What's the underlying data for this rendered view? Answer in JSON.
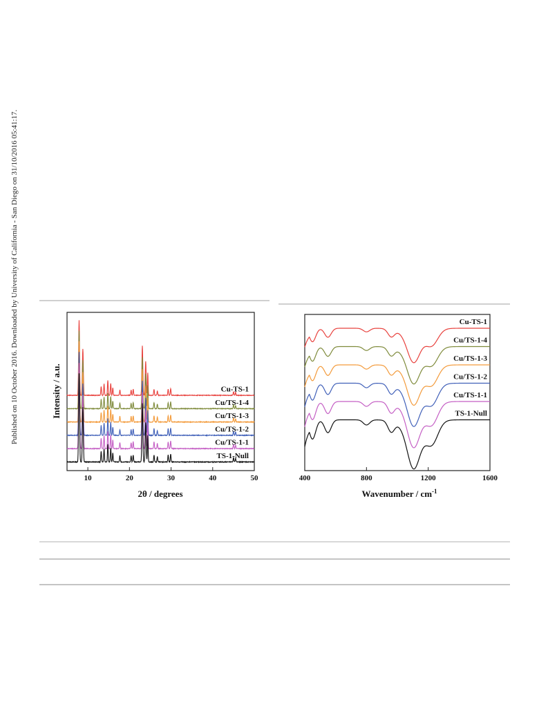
{
  "sidebar_text": "Published on 10 October 2016. Downloaded by University of California - San Diego on 31/10/2016 05:41:17.",
  "chart_data": [
    {
      "type": "line",
      "xlabel": "2θ / degrees",
      "ylabel": "Intensity / a.u.",
      "xlim": [
        5,
        50
      ],
      "xticks": [
        "10",
        "20",
        "30",
        "40",
        "50"
      ],
      "grid": false,
      "series": [
        {
          "name": "Cu-TS-1",
          "color": "#e8403c"
        },
        {
          "name": "Cu/TS-1-4",
          "color": "#7e8a3a"
        },
        {
          "name": "Cu/TS-1-3",
          "color": "#f39a3a"
        },
        {
          "name": "Cu/TS-1-2",
          "color": "#3f5fb8"
        },
        {
          "name": "Cu/TS-1-1",
          "color": "#c45ec4"
        },
        {
          "name": "TS-1-Null",
          "color": "#111111"
        }
      ],
      "peaks": [
        {
          "x": 7.9,
          "h": 1.0
        },
        {
          "x": 8.8,
          "h": 0.62
        },
        {
          "x": 13.2,
          "h": 0.12
        },
        {
          "x": 13.9,
          "h": 0.15
        },
        {
          "x": 14.8,
          "h": 0.2
        },
        {
          "x": 15.5,
          "h": 0.16
        },
        {
          "x": 16.0,
          "h": 0.1
        },
        {
          "x": 17.7,
          "h": 0.07
        },
        {
          "x": 20.4,
          "h": 0.07
        },
        {
          "x": 20.9,
          "h": 0.08
        },
        {
          "x": 23.1,
          "h": 0.66
        },
        {
          "x": 23.9,
          "h": 0.45
        },
        {
          "x": 24.4,
          "h": 0.3
        },
        {
          "x": 25.9,
          "h": 0.08
        },
        {
          "x": 26.7,
          "h": 0.06
        },
        {
          "x": 29.3,
          "h": 0.08
        },
        {
          "x": 29.9,
          "h": 0.09
        },
        {
          "x": 45.0,
          "h": 0.05
        },
        {
          "x": 45.5,
          "h": 0.04
        }
      ]
    },
    {
      "type": "line",
      "xlabel": "Wavenumber / cm-1",
      "ylabel": "",
      "xlim": [
        400,
        1600
      ],
      "xticks": [
        "400",
        "800",
        "1200",
        "1600"
      ],
      "grid": false,
      "series": [
        {
          "name": "Cu-TS-1",
          "color": "#e8403c"
        },
        {
          "name": "Cu/TS-1-4",
          "color": "#7e8a3a"
        },
        {
          "name": "Cu/TS-1-3",
          "color": "#f39a3a"
        },
        {
          "name": "Cu/TS-1-2",
          "color": "#3f5fb8"
        },
        {
          "name": "Cu/TS-1-1",
          "color": "#c45ec4"
        },
        {
          "name": "TS-1-Null",
          "color": "#111111"
        }
      ],
      "bands": [
        {
          "x": 450,
          "depth": 0.45
        },
        {
          "x": 550,
          "depth": 0.3
        },
        {
          "x": 800,
          "depth": 0.12
        },
        {
          "x": 960,
          "depth": 0.25
        },
        {
          "x": 1105,
          "depth": 0.8
        },
        {
          "x": 1225,
          "depth": 0.45
        }
      ]
    }
  ]
}
